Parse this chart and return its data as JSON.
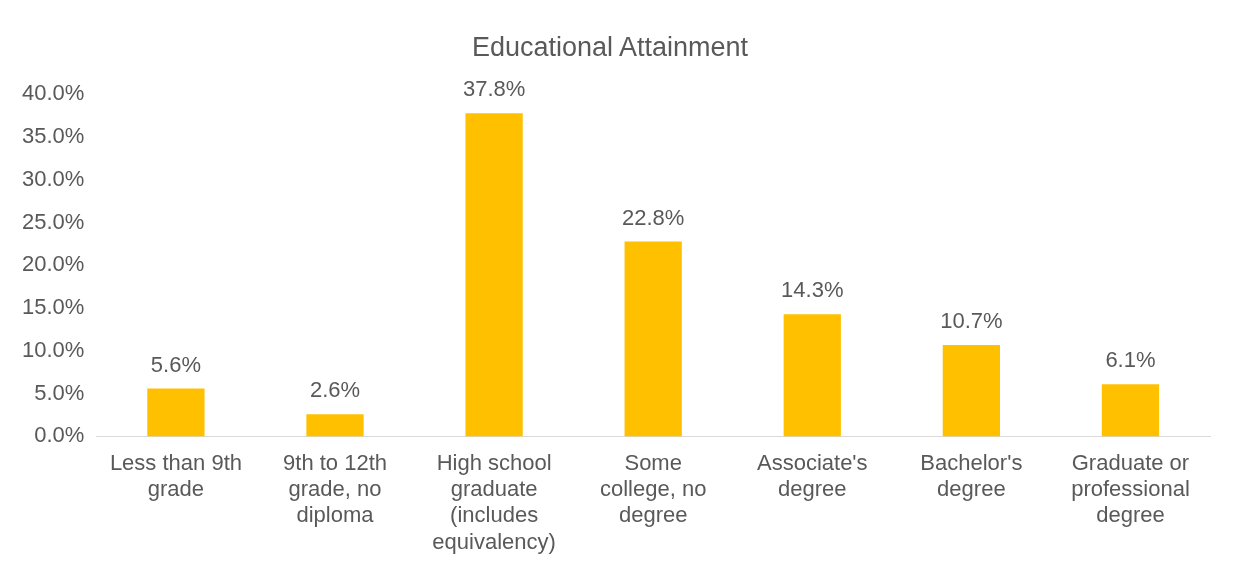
{
  "chart_data": {
    "type": "bar",
    "title": "Educational Attainment",
    "categories": [
      "Less than 9th grade",
      "9th to 12th grade, no diploma",
      "High school graduate (includes equivalency)",
      "Some college, no degree",
      "Associate's degree",
      "Bachelor's degree",
      "Graduate or professional degree"
    ],
    "values": [
      5.6,
      2.6,
      37.8,
      22.8,
      14.3,
      10.7,
      6.1
    ],
    "value_labels": [
      "5.6%",
      "2.6%",
      "37.8%",
      "22.8%",
      "14.3%",
      "10.7%",
      "6.1%"
    ],
    "color": "#ffc000",
    "ylim": [
      0,
      40
    ],
    "yticks": [
      {
        "value": 0,
        "label": "0.0%"
      },
      {
        "value": 5,
        "label": "5.0%"
      },
      {
        "value": 10,
        "label": "10.0%"
      },
      {
        "value": 15,
        "label": "15.0%"
      },
      {
        "value": 20,
        "label": "20.0%"
      },
      {
        "value": 25,
        "label": "25.0%"
      },
      {
        "value": 30,
        "label": "30.0%"
      },
      {
        "value": 35,
        "label": "35.0%"
      },
      {
        "value": 40,
        "label": "40.0%"
      }
    ],
    "grid": false,
    "legend": false
  }
}
